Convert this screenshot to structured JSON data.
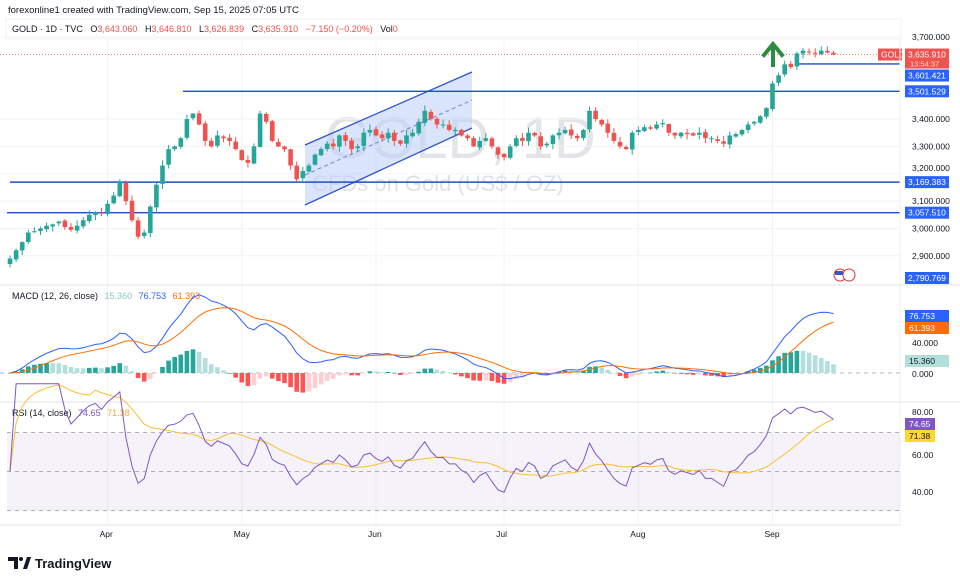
{
  "header": {
    "attribution": "forexonline1 created with TradingView.com, Sep 15, 2025 07:05 UTC"
  },
  "legend": {
    "symbol": "GOLD · 1D · TVC",
    "open_label": "O",
    "open": "3,643.060",
    "high_label": "H",
    "high": "3,646.810",
    "low_label": "L",
    "low": "3,626.839",
    "close_label": "C",
    "close": "3,635.910",
    "change": "−7.150 (−0.20%)",
    "vol_label": "Vol",
    "vol": "0"
  },
  "watermark": {
    "title": "GOLD, 1D",
    "subtitle": "CFDs on Gold (US$ / OZ)"
  },
  "price_axis": {
    "ticks": [
      "3,700.000",
      "3,400.000",
      "3,300.000",
      "3,200.000",
      "3,100.000",
      "3,000.000",
      "2,900.000"
    ],
    "tick_values": [
      3700,
      3400,
      3300,
      3200,
      3100,
      3000,
      2900
    ],
    "symbol_tag": "GOLD",
    "last_price": "3,635.910",
    "countdown": "13:54:37",
    "levels": [
      {
        "label": "3,601.421",
        "value": 3601.421
      },
      {
        "label": "3,501.529",
        "value": 3501.529
      },
      {
        "label": "3,169.383",
        "value": 3169.383
      },
      {
        "label": "3,057.510",
        "value": 3057.51
      }
    ],
    "bottom_tag": "2,790.769"
  },
  "macd": {
    "title": "MACD (12, 26, close)",
    "hist": "15.360",
    "macd": "76.753",
    "signal": "61.393",
    "ticks": [
      "40.000",
      "0.000"
    ],
    "colors": {
      "macd": "#2962ff",
      "signal": "#ff6d00",
      "hist_up": "#26a69a",
      "hist_up_light": "#b2dfdb",
      "hist_down": "#ff5252",
      "hist_down_light": "#ffcdd2"
    }
  },
  "rsi": {
    "title": "RSI (14, close)",
    "rsi": "74.65",
    "ma": "71.38",
    "ticks": [
      "80.00",
      "60.00",
      "40.00"
    ],
    "colors": {
      "rsi": "#7e57c2",
      "ma": "#fbc02d"
    }
  },
  "time_axis": {
    "months": [
      {
        "label": "Apr",
        "bar": 16
      },
      {
        "label": "May",
        "bar": 38
      },
      {
        "label": "Jun",
        "bar": 60
      },
      {
        "label": "Jul",
        "bar": 81
      },
      {
        "label": "Aug",
        "bar": 103
      },
      {
        "label": "Sep",
        "bar": 125
      }
    ]
  },
  "footer": {
    "brand": "TradingView"
  },
  "colors": {
    "up": "#26a69a",
    "down": "#ef5350",
    "level_line": "#1e4fc2",
    "channel_fill": "#bcd0f7",
    "arrow": "#2e8b3e"
  },
  "chart_data": {
    "type": "candlestick",
    "symbol": "GOLD",
    "interval": "1D",
    "closes": [
      2890,
      2920,
      2950,
      2985,
      2990,
      3000,
      3010,
      3015,
      3025,
      3005,
      2995,
      3010,
      3030,
      3050,
      3060,
      3055,
      3090,
      3120,
      3170,
      3100,
      3030,
      2970,
      2985,
      3080,
      3160,
      3230,
      3290,
      3300,
      3330,
      3400,
      3420,
      3380,
      3320,
      3300,
      3340,
      3330,
      3320,
      3290,
      3250,
      3240,
      3300,
      3420,
      3390,
      3320,
      3300,
      3290,
      3230,
      3180,
      3210,
      3230,
      3270,
      3290,
      3310,
      3300,
      3340,
      3320,
      3290,
      3300,
      3350,
      3360,
      3340,
      3330,
      3350,
      3320,
      3310,
      3340,
      3350,
      3390,
      3430,
      3400,
      3380,
      3380,
      3360,
      3360,
      3340,
      3330,
      3300,
      3320,
      3330,
      3300,
      3270,
      3260,
      3300,
      3330,
      3320,
      3350,
      3340,
      3300,
      3310,
      3340,
      3350,
      3360,
      3340,
      3330,
      3360,
      3430,
      3400,
      3380,
      3350,
      3320,
      3300,
      3290,
      3350,
      3360,
      3370,
      3365,
      3380,
      3385,
      3350,
      3340,
      3350,
      3345,
      3340,
      3350,
      3330,
      3330,
      3320,
      3310,
      3340,
      3345,
      3360,
      3380,
      3390,
      3410,
      3440,
      3530,
      3560,
      3600,
      3590,
      3640,
      3650,
      3645,
      3640,
      3650,
      3643.06,
      3635.91
    ],
    "ylim": [
      2830,
      3720
    ]
  }
}
